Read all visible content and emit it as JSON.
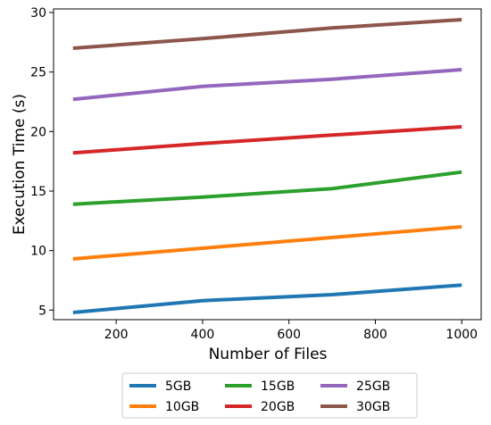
{
  "chart_data": {
    "type": "line",
    "title": "",
    "xlabel": "Number of Files",
    "ylabel": "Execution Time (s)",
    "xlim": [
      55,
      1045
    ],
    "ylim": [
      4.2,
      30.3
    ],
    "xticks": [
      200,
      400,
      600,
      800,
      1000
    ],
    "yticks": [
      5,
      10,
      15,
      20,
      25,
      30
    ],
    "grid": false,
    "legend_position": "bottom-center",
    "x": [
      100,
      400,
      700,
      1000
    ],
    "series": [
      {
        "name": "5GB",
        "color": "#1f77b4",
        "values": [
          4.8,
          5.8,
          6.3,
          7.1
        ]
      },
      {
        "name": "10GB",
        "color": "#ff7f0e",
        "values": [
          9.3,
          10.2,
          11.1,
          12.0
        ]
      },
      {
        "name": "15GB",
        "color": "#2ca02c",
        "values": [
          13.9,
          14.5,
          15.2,
          16.6
        ]
      },
      {
        "name": "20GB",
        "color": "#d62728",
        "values": [
          18.2,
          19.0,
          19.7,
          20.4
        ]
      },
      {
        "name": "25GB",
        "color": "#9467bd",
        "values": [
          22.7,
          23.8,
          24.4,
          25.2
        ]
      },
      {
        "name": "30GB",
        "color": "#8c564b",
        "values": [
          27.0,
          27.8,
          28.7,
          29.4
        ]
      }
    ]
  }
}
